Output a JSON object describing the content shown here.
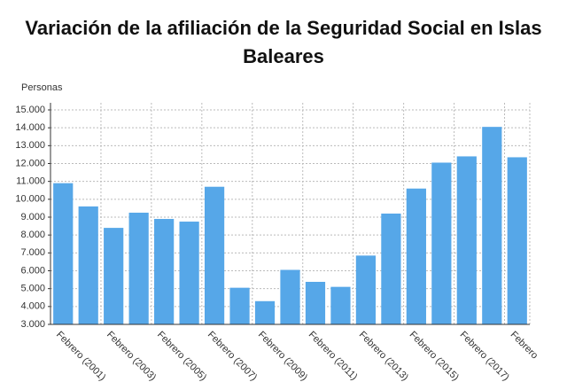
{
  "chart_data": {
    "type": "bar",
    "title": "Variación de la afiliación de la Seguridad Social en Islas Baleares",
    "y_label": "Personas",
    "categories": [
      "Febrero (2001)",
      null,
      "Febrero (2003)",
      null,
      "Febrero (2005)",
      null,
      "Febrero (2007)",
      null,
      "Febrero (2009)",
      null,
      "Febrero (2011)",
      null,
      "Febrero (2013)",
      null,
      "Febrero (2015)",
      null,
      "Febrero (2017)",
      null,
      "Febrero"
    ],
    "values": [
      10900,
      9600,
      8400,
      9250,
      8900,
      8750,
      10700,
      5050,
      4300,
      6050,
      5380,
      5100,
      6850,
      9200,
      10600,
      12050,
      12400,
      14050,
      12350
    ],
    "color": "#56a7e8",
    "ylim": [
      3000,
      15000
    ],
    "yticks": [
      {
        "value": 3000,
        "label": "3.000"
      },
      {
        "value": 4000,
        "label": "4.000"
      },
      {
        "value": 5000,
        "label": "5.000"
      },
      {
        "value": 6000,
        "label": "6.000"
      },
      {
        "value": 7000,
        "label": "7.000"
      },
      {
        "value": 8000,
        "label": "8.000"
      },
      {
        "value": 9000,
        "label": "9.000"
      },
      {
        "value": 10000,
        "label": "10.000"
      },
      {
        "value": 11000,
        "label": "11.000"
      },
      {
        "value": 12000,
        "label": "12.000"
      },
      {
        "value": 13000,
        "label": "13.000"
      },
      {
        "value": 14000,
        "label": "14.000"
      },
      {
        "value": 15000,
        "label": "15.000"
      }
    ],
    "grid": true
  }
}
